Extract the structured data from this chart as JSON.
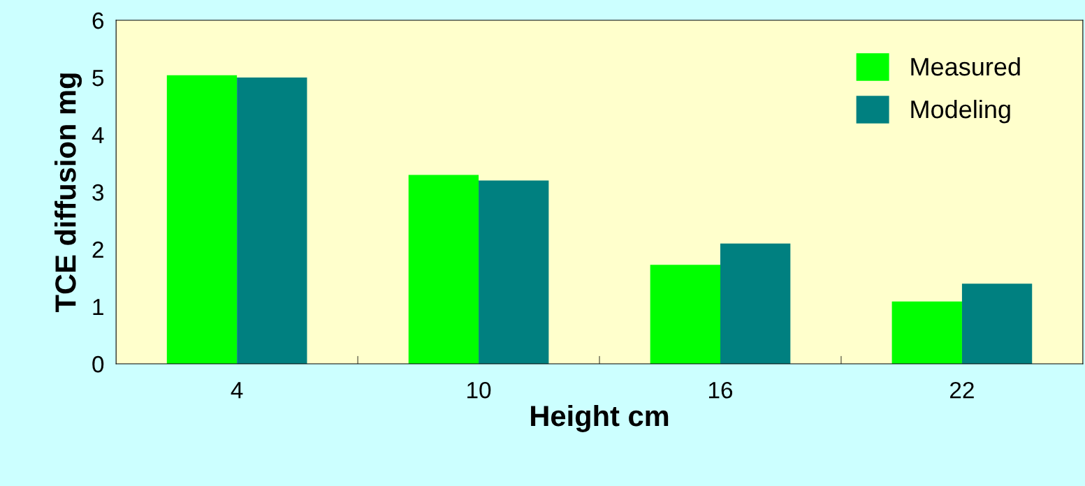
{
  "chart_data": {
    "type": "bar",
    "xlabel": "Height cm",
    "ylabel": "TCE diffusion mg",
    "categories": [
      "4",
      "10",
      "16",
      "22"
    ],
    "series": [
      {
        "name": "Measured",
        "color": "#00ff00",
        "values": [
          5.04,
          3.3,
          1.73,
          1.09
        ]
      },
      {
        "name": "Modeling",
        "color": "#008080",
        "values": [
          5.0,
          3.2,
          2.1,
          1.4
        ]
      }
    ],
    "ylim": [
      0,
      6
    ],
    "yticks": [
      0,
      1,
      2,
      3,
      4,
      5,
      6
    ],
    "grid": false,
    "legend": "top right"
  }
}
